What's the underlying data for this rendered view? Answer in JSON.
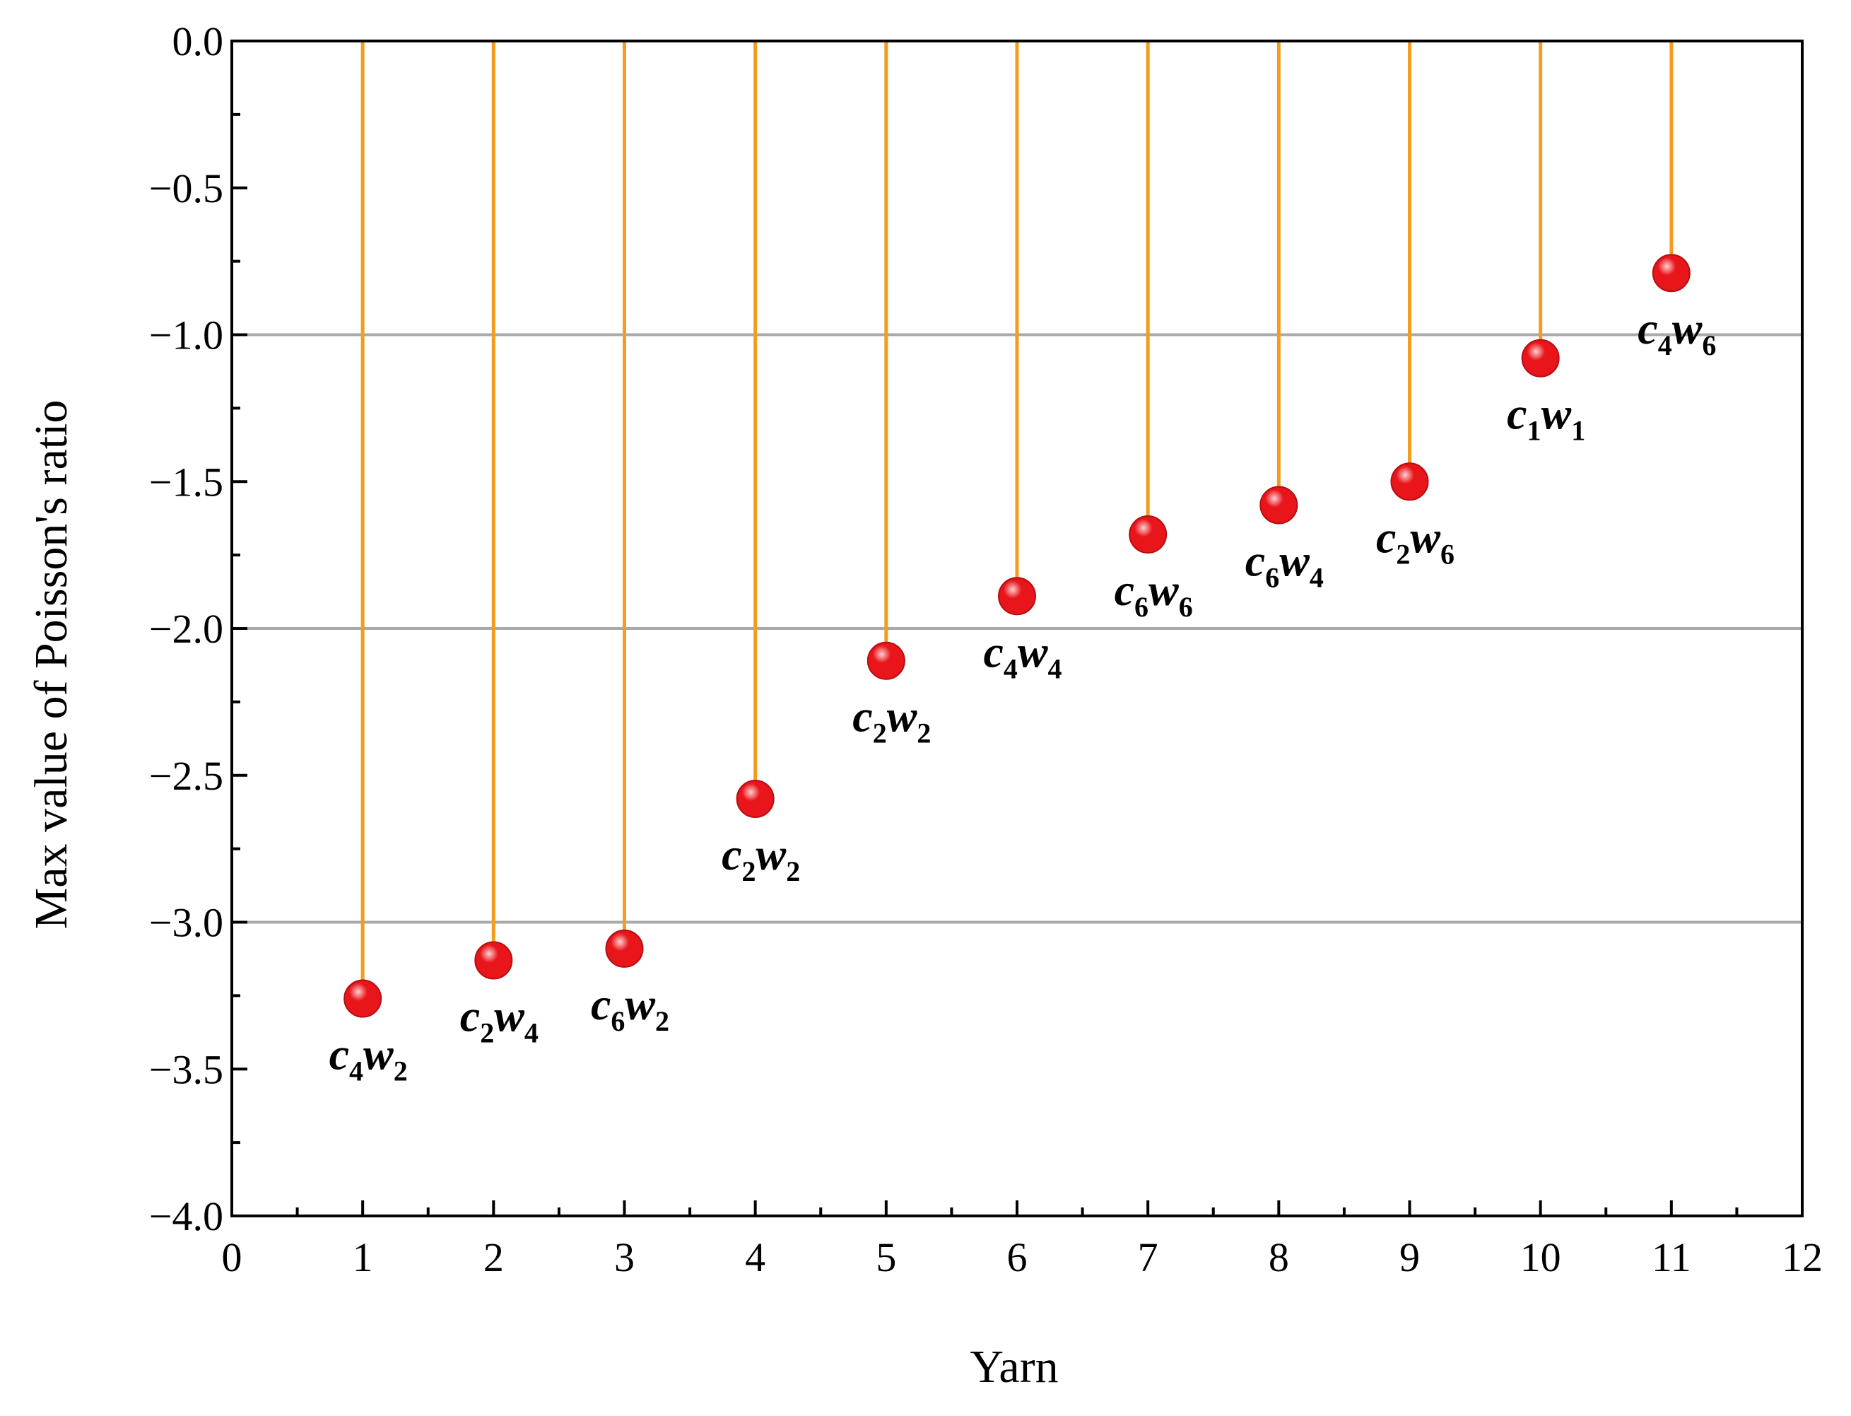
{
  "chart_data": {
    "type": "stem",
    "title": "",
    "xlabel": "Yarn",
    "ylabel": "Max value of Poisson's ratio",
    "xlim": [
      0,
      12
    ],
    "ylim": [
      -4.0,
      0.0
    ],
    "x_ticks": [
      "0",
      "1",
      "2",
      "3",
      "4",
      "5",
      "6",
      "7",
      "8",
      "9",
      "10",
      "11",
      "12"
    ],
    "y_ticks": [
      "0.0",
      "−0.5",
      "−1.0",
      "−1.5",
      "−2.0",
      "−2.5",
      "−3.0",
      "−3.5",
      "−4.0"
    ],
    "y_tick_values": [
      0.0,
      -0.5,
      -1.0,
      -1.5,
      -2.0,
      -2.5,
      -3.0,
      -3.5,
      -4.0
    ],
    "gridlines_y": [
      -1.0,
      -2.0,
      -3.0
    ],
    "points": [
      {
        "x": 1,
        "y": -3.26,
        "label": "c4w2",
        "c": "c",
        "c_sub": "4",
        "w": "w",
        "w_sub": "2",
        "label_pos": "below"
      },
      {
        "x": 2,
        "y": -3.13,
        "label": "c2w4",
        "c": "c",
        "c_sub": "2",
        "w": "w",
        "w_sub": "4",
        "label_pos": "below"
      },
      {
        "x": 3,
        "y": -3.09,
        "label": "c6w2",
        "c": "c",
        "c_sub": "6",
        "w": "w",
        "w_sub": "2",
        "label_pos": "below"
      },
      {
        "x": 4,
        "y": -2.58,
        "label": "c2w2",
        "c": "c",
        "c_sub": "2",
        "w": "w",
        "w_sub": "2",
        "label_pos": "below"
      },
      {
        "x": 5,
        "y": -2.11,
        "label": "c2w2",
        "c": "c",
        "c_sub": "2",
        "w": "w",
        "w_sub": "2",
        "label_pos": "below"
      },
      {
        "x": 6,
        "y": -1.89,
        "label": "c4w4",
        "c": "c",
        "c_sub": "4",
        "w": "w",
        "w_sub": "4",
        "label_pos": "below"
      },
      {
        "x": 7,
        "y": -1.68,
        "label": "c6w6",
        "c": "c",
        "c_sub": "6",
        "w": "w",
        "w_sub": "6",
        "label_pos": "below"
      },
      {
        "x": 8,
        "y": -1.58,
        "label": "c6w4",
        "c": "c",
        "c_sub": "6",
        "w": "w",
        "w_sub": "4",
        "label_pos": "below"
      },
      {
        "x": 9,
        "y": -1.5,
        "label": "c2w6",
        "c": "c",
        "c_sub": "2",
        "w": "w",
        "w_sub": "6",
        "label_pos": "below"
      },
      {
        "x": 10,
        "y": -1.08,
        "label": "c1w1",
        "c": "c",
        "c_sub": "1",
        "w": "w",
        "w_sub": "1",
        "label_pos": "below"
      },
      {
        "x": 11,
        "y": -0.79,
        "label": "c4w6",
        "c": "c",
        "c_sub": "4",
        "w": "w",
        "w_sub": "6",
        "label_pos": "below"
      }
    ],
    "colors": {
      "stem": "#F39C1E",
      "marker": "#E8151B",
      "marker_highlight": "#FFD0D0",
      "grid": "#A9A9A9",
      "axis": "#000000"
    }
  }
}
